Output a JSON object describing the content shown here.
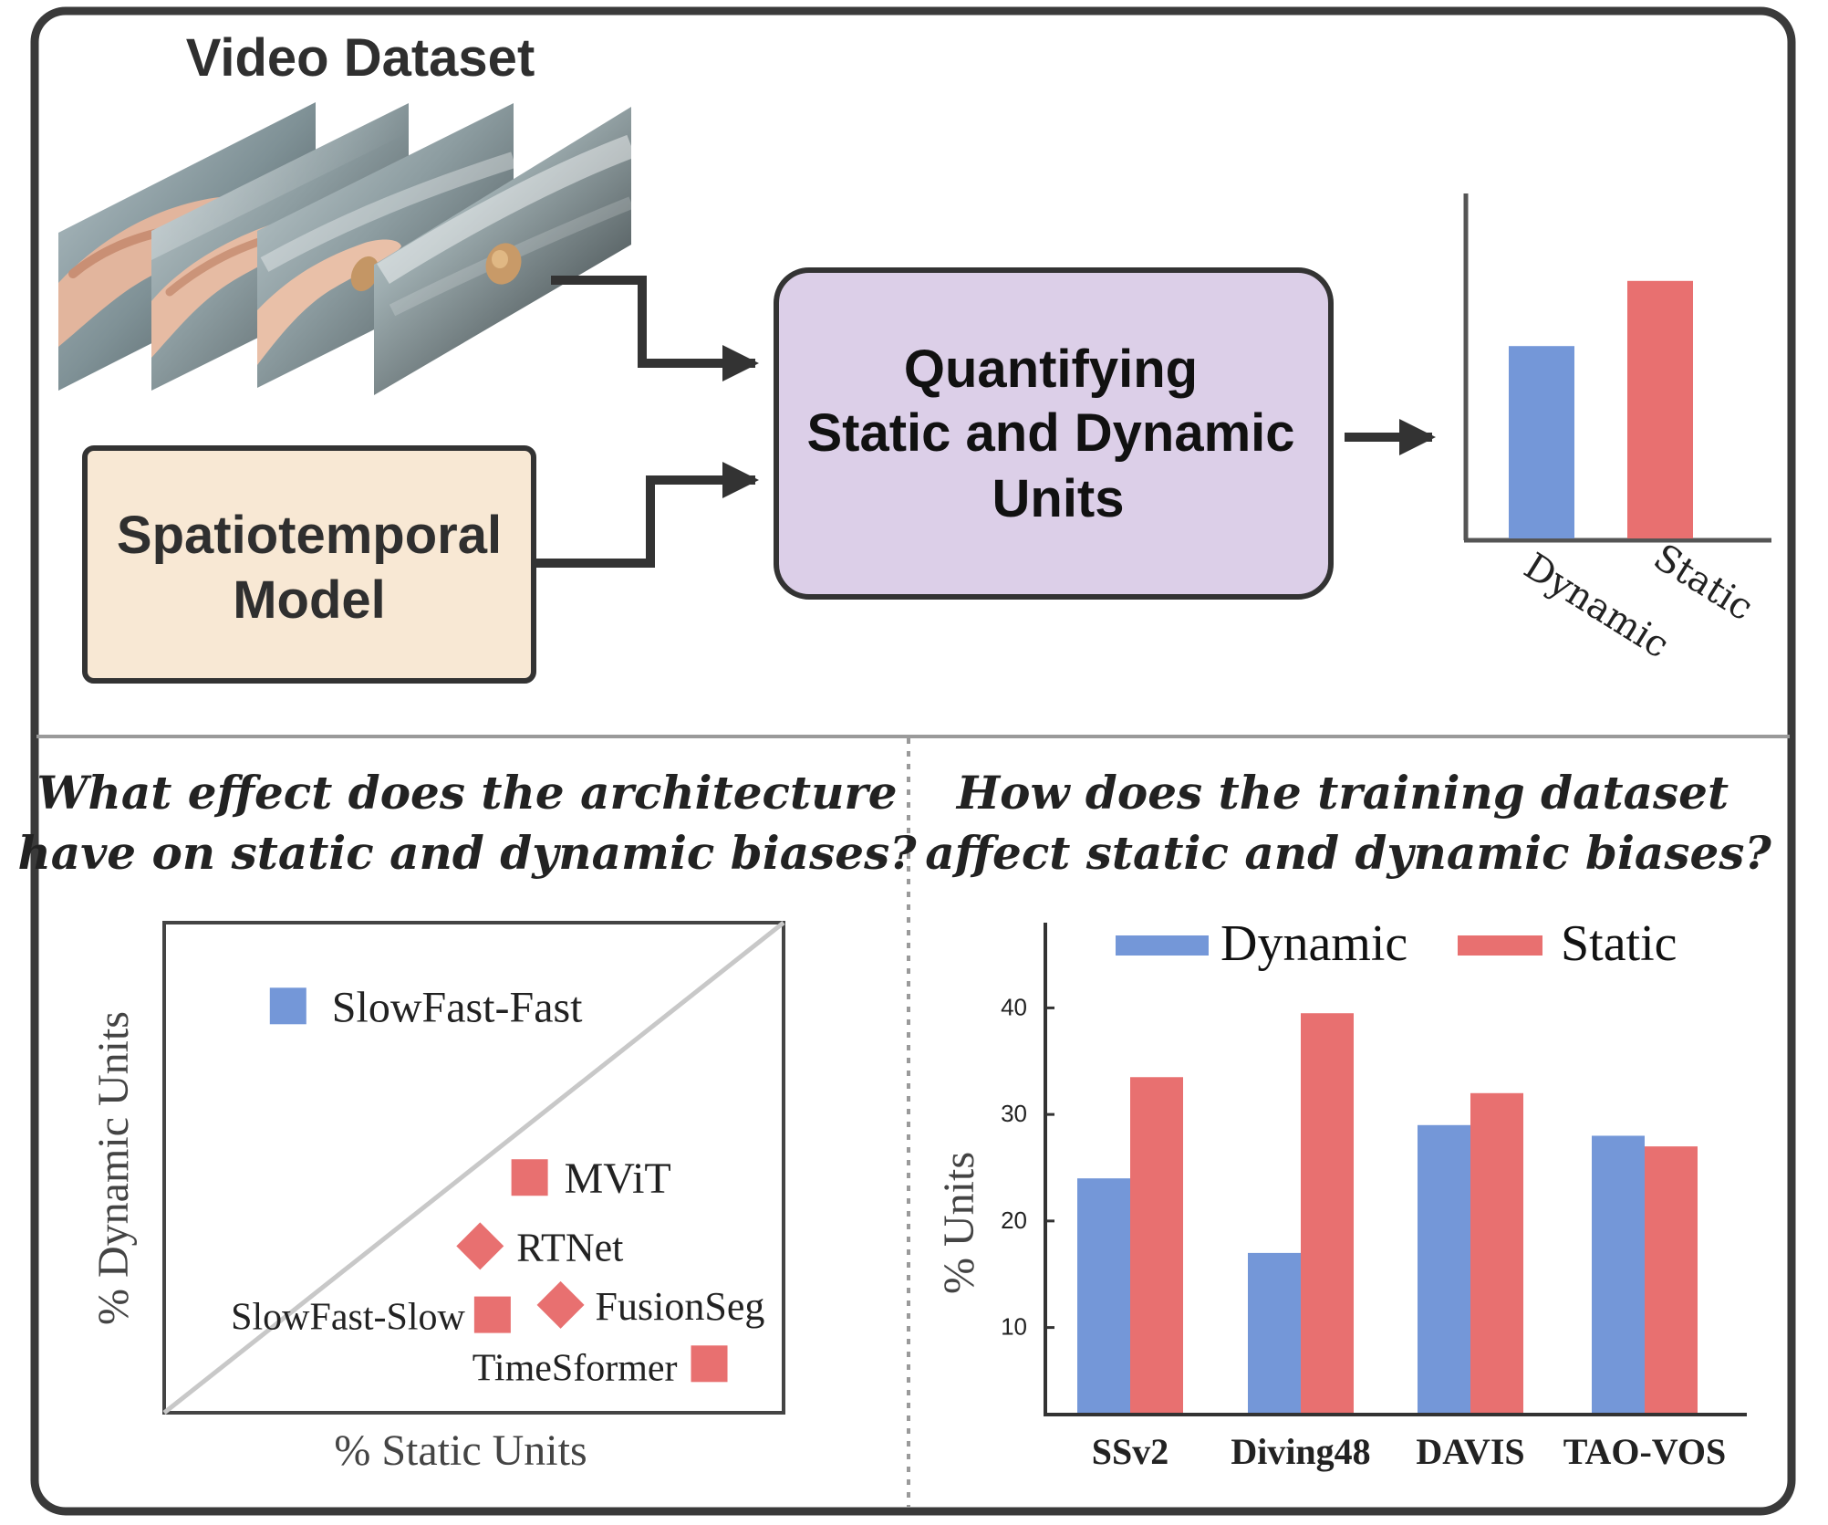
{
  "top": {
    "dataset_title": "Video Dataset",
    "model_box": {
      "line1": "Spatiotemporal",
      "line2": "Model"
    },
    "process_box": {
      "line1": "Quantifying",
      "line2": "Static and Dynamic",
      "line3": "Units"
    },
    "summary_chart": {
      "categories": [
        "Dynamic",
        "Static"
      ],
      "values": [
        0.62,
        0.83
      ],
      "colors": [
        "#7497d8",
        "#e87070"
      ]
    }
  },
  "bottom_left": {
    "question_line1": "What effect does the architecture",
    "question_line2": "have on static and dynamic biases?",
    "chart_data": {
      "type": "scatter",
      "xlabel": "% Static Units",
      "ylabel": "% Dynamic Units",
      "points": [
        {
          "label": "SlowFast-Fast",
          "x": 0.2,
          "y": 0.83,
          "marker": "square",
          "color": "#7497d8"
        },
        {
          "label": "MViT",
          "x": 0.59,
          "y": 0.48,
          "marker": "square",
          "color": "#e87070"
        },
        {
          "label": "RTNet",
          "x": 0.51,
          "y": 0.34,
          "marker": "diamond",
          "color": "#e87070"
        },
        {
          "label": "SlowFast-Slow",
          "x": 0.53,
          "y": 0.2,
          "marker": "square",
          "color": "#e87070"
        },
        {
          "label": "FusionSeg",
          "x": 0.64,
          "y": 0.22,
          "marker": "diamond",
          "color": "#e87070"
        },
        {
          "label": "TimeSformer",
          "x": 0.88,
          "y": 0.1,
          "marker": "square",
          "color": "#e87070"
        }
      ]
    }
  },
  "bottom_right": {
    "question_line1": "How does the training dataset",
    "question_line2": "affect static and dynamic biases?",
    "chart_data": {
      "type": "bar",
      "categories": [
        "SSv2",
        "Diving48",
        "DAVIS",
        "TAO-VOS"
      ],
      "series": [
        {
          "name": "Dynamic",
          "values": [
            24,
            17,
            29,
            28
          ],
          "color": "#7497d8"
        },
        {
          "name": "Static",
          "values": [
            33.5,
            39.5,
            32,
            27
          ],
          "color": "#e87070"
        }
      ],
      "ylabel": "% Units",
      "yticks": [
        10,
        20,
        30,
        40
      ],
      "ylim": [
        2,
        48
      ]
    }
  }
}
